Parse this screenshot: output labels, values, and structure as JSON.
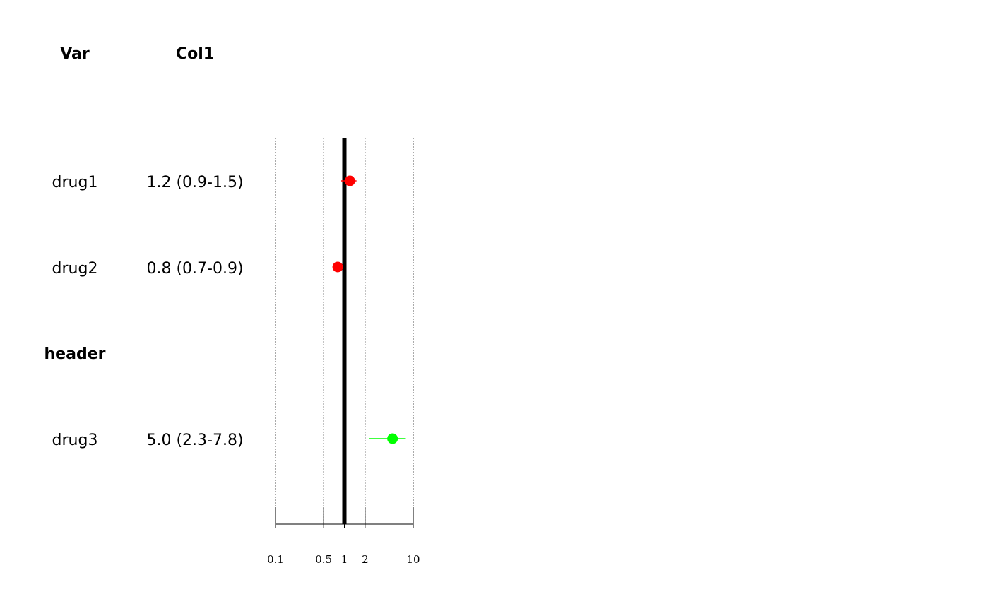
{
  "columns": [
    "Var",
    "Col1"
  ],
  "rows": [
    {
      "label": "drug1",
      "text": "1.2 (0.9-1.5)",
      "is_header": false
    },
    {
      "label": "drug2",
      "text": "0.8 (0.7-0.9)",
      "is_header": false
    },
    {
      "label": "header",
      "text": "",
      "is_header": true
    },
    {
      "label": "drug3",
      "text": "5.0 (2.3-7.8)",
      "is_header": false
    }
  ],
  "chart_data": {
    "type": "forest",
    "x_scale": "log",
    "xlim": [
      0.1,
      10
    ],
    "xticks": [
      0.1,
      0.5,
      1,
      2,
      10
    ],
    "xtick_labels": [
      "0.1",
      "0.5",
      "1",
      "2",
      "10"
    ],
    "reference_line": 1,
    "grid": true,
    "points": [
      {
        "label": "drug1",
        "estimate": 1.2,
        "lower": 0.9,
        "upper": 1.5,
        "color": "#ff0000"
      },
      {
        "label": "drug2",
        "estimate": 0.8,
        "lower": 0.7,
        "upper": 0.9,
        "color": "#ff0000"
      },
      {
        "label": "drug3",
        "estimate": 5.0,
        "lower": 2.3,
        "upper": 7.8,
        "color": "#00ff00"
      }
    ]
  }
}
